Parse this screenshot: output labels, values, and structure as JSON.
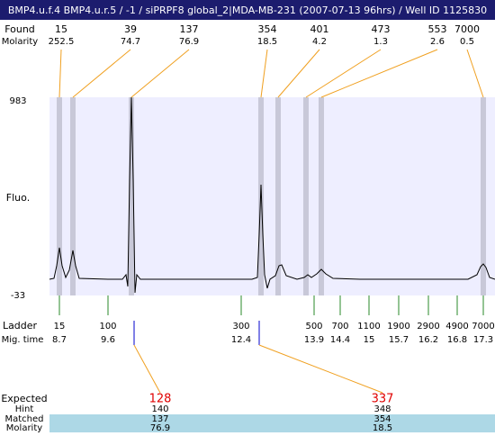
{
  "title": "BMP4.u.f.4  BMP4.u.r.5 / -1 / siPRPF8 global_2|MDA-MB-231 (2007-07-13 96hrs) / Well ID 1125830",
  "found": {
    "label": "Found",
    "molarity_label": "Molarity",
    "peaks": [
      {
        "size": "15",
        "molarity": "252.5"
      },
      {
        "size": "39",
        "molarity": "74.7"
      },
      {
        "size": "137",
        "molarity": "76.9"
      },
      {
        "size": "354",
        "molarity": "18.5"
      },
      {
        "size": "401",
        "molarity": "4.2"
      },
      {
        "size": "473",
        "molarity": "1.3"
      },
      {
        "size": "553",
        "molarity": "2.6"
      },
      {
        "size": "7000",
        "molarity": "0.5"
      }
    ]
  },
  "axis": {
    "label": "Fluo.",
    "max": "983",
    "min": "-33"
  },
  "ladder": {
    "label": "Ladder",
    "time_label": "Mig. time",
    "entries": [
      {
        "size": "15",
        "time": "8.7"
      },
      {
        "size": "100",
        "time": "9.6"
      },
      {
        "size": "300",
        "time": "12.4"
      },
      {
        "size": "500",
        "time": "13.9"
      },
      {
        "size": "700",
        "time": "14.4"
      },
      {
        "size": "1100",
        "time": "15"
      },
      {
        "size": "1900",
        "time": "15.7"
      },
      {
        "size": "2900",
        "time": "16.2"
      },
      {
        "size": "4900",
        "time": "16.8"
      },
      {
        "size": "7000",
        "time": "17.3"
      }
    ]
  },
  "expected": {
    "label": "Expected",
    "hint_label": "Hint",
    "matched_label": "Matched",
    "molarity_label": "Molarity",
    "entries": [
      {
        "expected": "128",
        "hint": "140",
        "matched": "137",
        "molarity": "76.9"
      },
      {
        "expected": "337",
        "hint": "348",
        "matched": "354",
        "molarity": "18.5"
      }
    ]
  }
}
